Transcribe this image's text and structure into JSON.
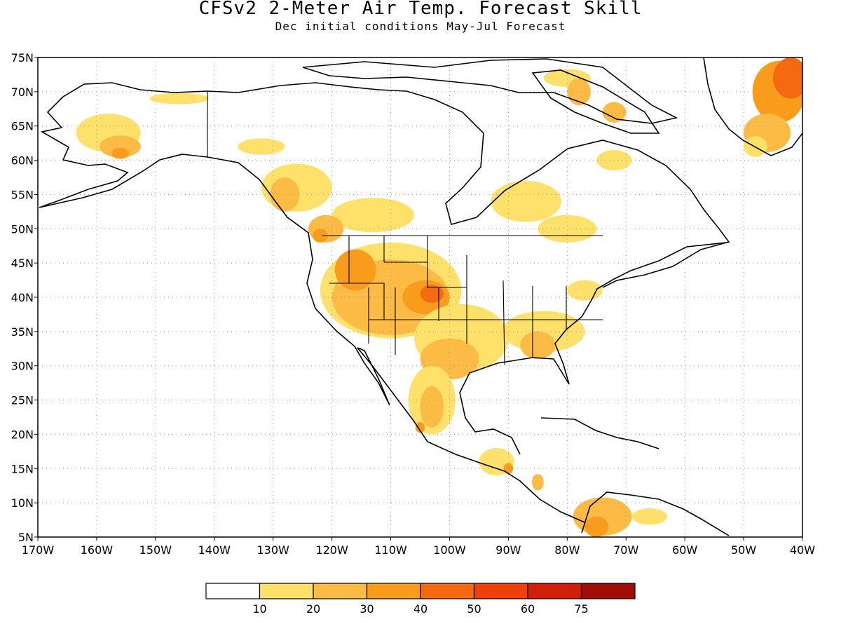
{
  "title": "CFSv2 2-Meter Air Temp. Forecast Skill",
  "subtitle": "Dec initial conditions   May-Jul Forecast",
  "map": {
    "lon_range": [
      -170,
      -40
    ],
    "lat_range": [
      5,
      75
    ],
    "lat_ticks": [
      {
        "value": 75,
        "label": "75N"
      },
      {
        "value": 70,
        "label": "70N"
      },
      {
        "value": 65,
        "label": "65N"
      },
      {
        "value": 60,
        "label": "60N"
      },
      {
        "value": 55,
        "label": "55N"
      },
      {
        "value": 50,
        "label": "50N"
      },
      {
        "value": 45,
        "label": "45N"
      },
      {
        "value": 40,
        "label": "40N"
      },
      {
        "value": 35,
        "label": "35N"
      },
      {
        "value": 30,
        "label": "30N"
      },
      {
        "value": 25,
        "label": "25N"
      },
      {
        "value": 20,
        "label": "20N"
      },
      {
        "value": 15,
        "label": "15N"
      },
      {
        "value": 10,
        "label": "10N"
      },
      {
        "value": 5,
        "label": "5N"
      }
    ],
    "lon_ticks": [
      {
        "value": -170,
        "label": "170W"
      },
      {
        "value": -160,
        "label": "160W"
      },
      {
        "value": -150,
        "label": "150W"
      },
      {
        "value": -140,
        "label": "140W"
      },
      {
        "value": -130,
        "label": "130W"
      },
      {
        "value": -120,
        "label": "120W"
      },
      {
        "value": -110,
        "label": "110W"
      },
      {
        "value": -100,
        "label": "100W"
      },
      {
        "value": -90,
        "label": "90W"
      },
      {
        "value": -80,
        "label": "80W"
      },
      {
        "value": -70,
        "label": "70W"
      },
      {
        "value": -60,
        "label": "60W"
      },
      {
        "value": -50,
        "label": "50W"
      },
      {
        "value": -40,
        "label": "40W"
      }
    ],
    "gridlines": "dotted"
  },
  "colorbar": {
    "bins": [
      {
        "color": "#ffffff",
        "label": "10"
      },
      {
        "color": "#fde16a",
        "label": "20"
      },
      {
        "color": "#fbbb45",
        "label": "30"
      },
      {
        "color": "#f99c1c",
        "label": "40"
      },
      {
        "color": "#f56a0f",
        "label": "50"
      },
      {
        "color": "#f0400a",
        "label": "60"
      },
      {
        "color": "#d21f09",
        "label": "75"
      },
      {
        "color": "#a10c06",
        "label": ""
      }
    ]
  },
  "skill_patches": [
    {
      "level": 1,
      "lon": -158,
      "lat": 64,
      "rlon": 5.5,
      "rlat": 2.8
    },
    {
      "level": 2,
      "lon": -156,
      "lat": 62,
      "rlon": 3.5,
      "rlat": 1.6
    },
    {
      "level": 3,
      "lon": -156,
      "lat": 61,
      "rlon": 1.5,
      "rlat": 0.8
    },
    {
      "level": 1,
      "lon": -146,
      "lat": 69,
      "rlon": 5,
      "rlat": 0.8
    },
    {
      "level": 1,
      "lon": -132,
      "lat": 62,
      "rlon": 4,
      "rlat": 1.2
    },
    {
      "level": 1,
      "lon": -126,
      "lat": 56,
      "rlon": 6,
      "rlat": 3.5
    },
    {
      "level": 2,
      "lon": -128,
      "lat": 55,
      "rlon": 2.5,
      "rlat": 2.5
    },
    {
      "level": 1,
      "lon": -113,
      "lat": 52,
      "rlon": 7,
      "rlat": 2.5
    },
    {
      "level": 2,
      "lon": -121,
      "lat": 50,
      "rlon": 3,
      "rlat": 2
    },
    {
      "level": 3,
      "lon": -122,
      "lat": 49,
      "rlon": 1.3,
      "rlat": 1
    },
    {
      "level": 1,
      "lon": -110,
      "lat": 41,
      "rlon": 12,
      "rlat": 7
    },
    {
      "level": 2,
      "lon": -110,
      "lat": 40,
      "rlon": 10,
      "rlat": 5.5
    },
    {
      "level": 3,
      "lon": -116,
      "lat": 44,
      "rlon": 3.5,
      "rlat": 3
    },
    {
      "level": 3,
      "lon": -104,
      "lat": 40,
      "rlon": 4,
      "rlat": 2.5
    },
    {
      "level": 4,
      "lon": -103,
      "lat": 40.5,
      "rlon": 2,
      "rlat": 1.3
    },
    {
      "level": 1,
      "lon": -98,
      "lat": 34,
      "rlon": 8,
      "rlat": 5
    },
    {
      "level": 2,
      "lon": -100,
      "lat": 31,
      "rlon": 5,
      "rlat": 3
    },
    {
      "level": 1,
      "lon": -103,
      "lat": 25,
      "rlon": 4,
      "rlat": 5
    },
    {
      "level": 2,
      "lon": -103,
      "lat": 24,
      "rlon": 2,
      "rlat": 3
    },
    {
      "level": 3,
      "lon": -105,
      "lat": 21,
      "rlon": 0.8,
      "rlat": 0.8
    },
    {
      "level": 1,
      "lon": -84,
      "lat": 35,
      "rlon": 7,
      "rlat": 3
    },
    {
      "level": 2,
      "lon": -85,
      "lat": 33,
      "rlon": 3,
      "rlat": 2
    },
    {
      "level": 1,
      "lon": -77,
      "lat": 41,
      "rlon": 3,
      "rlat": 1.5
    },
    {
      "level": 1,
      "lon": -80,
      "lat": 50,
      "rlon": 5,
      "rlat": 2
    },
    {
      "level": 1,
      "lon": -87,
      "lat": 54,
      "rlon": 6,
      "rlat": 3
    },
    {
      "level": 1,
      "lon": -80,
      "lat": 72,
      "rlon": 4,
      "rlat": 1.3
    },
    {
      "level": 2,
      "lon": -78,
      "lat": 70,
      "rlon": 2,
      "rlat": 2
    },
    {
      "level": 2,
      "lon": -72,
      "lat": 67,
      "rlon": 2,
      "rlat": 1.5
    },
    {
      "level": 1,
      "lon": -72,
      "lat": 60,
      "rlon": 3,
      "rlat": 1.5
    },
    {
      "level": 1,
      "lon": -92,
      "lat": 16,
      "rlon": 3,
      "rlat": 2
    },
    {
      "level": 3,
      "lon": -90,
      "lat": 15,
      "rlon": 0.8,
      "rlat": 0.8
    },
    {
      "level": 2,
      "lon": -85,
      "lat": 13,
      "rlon": 1,
      "rlat": 1.2
    },
    {
      "level": 2,
      "lon": -74,
      "lat": 8,
      "rlon": 5,
      "rlat": 2.8
    },
    {
      "level": 3,
      "lon": -75,
      "lat": 6.5,
      "rlon": 2,
      "rlat": 1.5
    },
    {
      "level": 1,
      "lon": -66,
      "lat": 8,
      "rlon": 3,
      "rlat": 1.2
    },
    {
      "level": 3,
      "lon": -44,
      "lat": 70,
      "rlon": 4.5,
      "rlat": 4.5
    },
    {
      "level": 4,
      "lon": -42,
      "lat": 72,
      "rlon": 3,
      "rlat": 3
    },
    {
      "level": 2,
      "lon": -46,
      "lat": 64,
      "rlon": 4,
      "rlat": 2.8
    },
    {
      "level": 1,
      "lon": -48,
      "lat": 62,
      "rlon": 2,
      "rlat": 1.5
    }
  ]
}
